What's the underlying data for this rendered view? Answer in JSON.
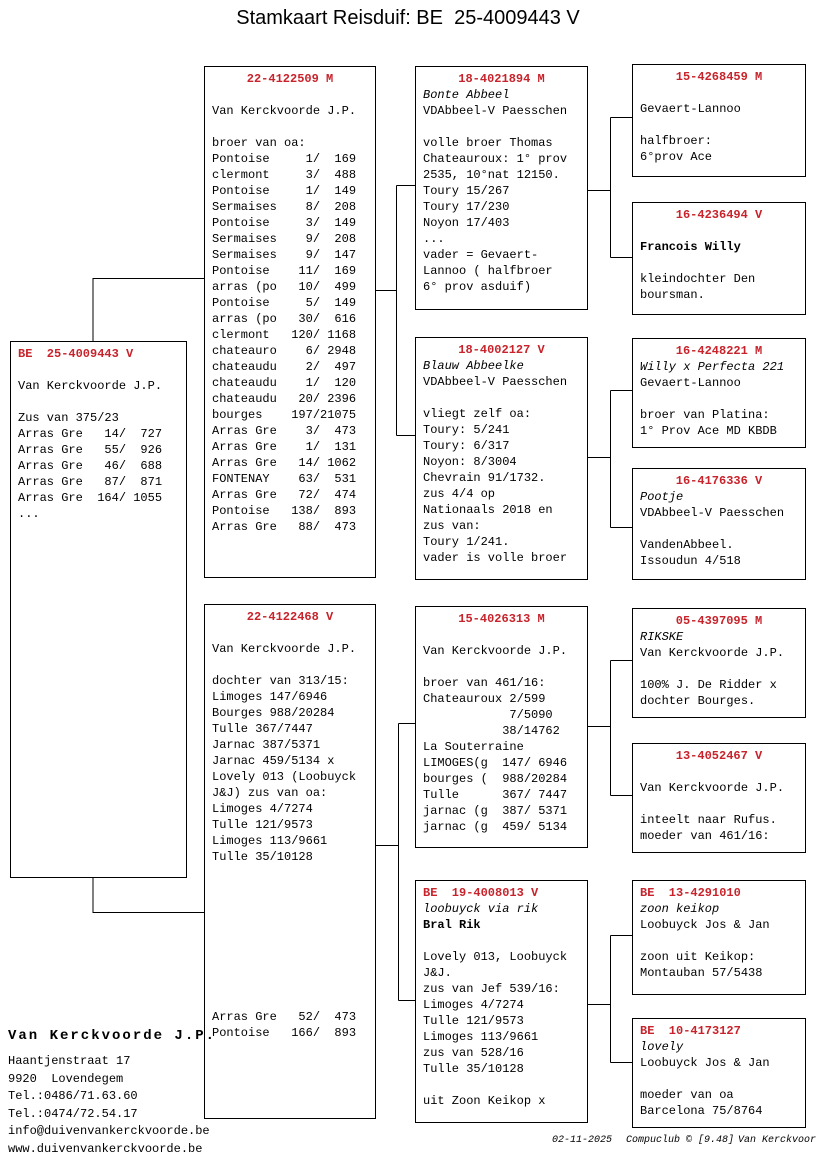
{
  "title": "Stamkaart Reisduif: BE  25-4009443 V",
  "colors": {
    "accent_red": "#c8232b",
    "border": "#000000",
    "background": "#ffffff"
  },
  "boxes": [
    {
      "id": "subject",
      "ring": "BE  25-4009443 V",
      "align": "left",
      "lines": [
        {
          "text": ""
        },
        {
          "text": "Van Kerckvoorde J.P."
        },
        {
          "text": ""
        },
        {
          "text": "Zus van 375/23"
        },
        {
          "text": "Arras Gre   14/  727"
        },
        {
          "text": "Arras Gre   55/  926"
        },
        {
          "text": "Arras Gre   46/  688"
        },
        {
          "text": "Arras Gre   87/  871"
        },
        {
          "text": "Arras Gre  164/ 1055"
        },
        {
          "text": "..."
        }
      ]
    },
    {
      "id": "sire",
      "ring": "22-4122509 M",
      "align": "center",
      "lines": [
        {
          "text": ""
        },
        {
          "text": "Van Kerckvoorde J.P."
        },
        {
          "text": ""
        },
        {
          "text": "broer van oa:"
        },
        {
          "text": "Pontoise     1/  169"
        },
        {
          "text": "clermont     3/  488"
        },
        {
          "text": "Pontoise     1/  149"
        },
        {
          "text": "Sermaises    8/  208"
        },
        {
          "text": "Pontoise     3/  149"
        },
        {
          "text": "Sermaises    9/  208"
        },
        {
          "text": "Sermaises    9/  147"
        },
        {
          "text": "Pontoise    11/  169"
        },
        {
          "text": "arras (po   10/  499"
        },
        {
          "text": "Pontoise     5/  149"
        },
        {
          "text": "arras (po   30/  616"
        },
        {
          "text": "clermont   120/ 1168"
        },
        {
          "text": "chateauro    6/ 2948"
        },
        {
          "text": "chateaudu    2/  497"
        },
        {
          "text": "chateaudu    1/  120"
        },
        {
          "text": "chateaudu   20/ 2396"
        },
        {
          "text": "bourges    197/21075"
        },
        {
          "text": "Arras Gre    3/  473"
        },
        {
          "text": "Arras Gre    1/  131"
        },
        {
          "text": "Arras Gre   14/ 1062"
        },
        {
          "text": "FONTENAY    63/  531"
        },
        {
          "text": "Arras Gre   72/  474"
        },
        {
          "text": "Pontoise   138/  893"
        },
        {
          "text": "Arras Gre   88/  473"
        }
      ]
    },
    {
      "id": "dam",
      "ring": "22-4122468 V",
      "align": "center",
      "lines": [
        {
          "text": ""
        },
        {
          "text": "Van Kerckvoorde J.P."
        },
        {
          "text": ""
        },
        {
          "text": "dochter van 313/15:"
        },
        {
          "text": "Limoges 147/6946"
        },
        {
          "text": "Bourges 988/20284"
        },
        {
          "text": "Tulle 367/7447"
        },
        {
          "text": "Jarnac 387/5371"
        },
        {
          "text": "Jarnac 459/5134 x"
        },
        {
          "text": "Lovely 013 (Loobuyck"
        },
        {
          "text": "J&J) zus van oa:"
        },
        {
          "text": "Limoges 4/7274"
        },
        {
          "text": "Tulle 121/9573"
        },
        {
          "text": "Limoges 113/9661"
        },
        {
          "text": "Tulle 35/10128"
        },
        {
          "text": ""
        },
        {
          "text": ""
        },
        {
          "text": ""
        },
        {
          "text": ""
        },
        {
          "text": ""
        },
        {
          "text": ""
        },
        {
          "text": ""
        },
        {
          "text": ""
        },
        {
          "text": ""
        },
        {
          "text": "Arras Gre   52/  473"
        },
        {
          "text": "Pontoise   166/  893"
        }
      ]
    },
    {
      "id": "ss",
      "ring": "18-4021894 M",
      "align": "center",
      "lines": [
        {
          "text": "Bonte Abbeel",
          "style": "i"
        },
        {
          "text": "VDAbbeel-V Paesschen"
        },
        {
          "text": ""
        },
        {
          "text": "volle broer Thomas"
        },
        {
          "text": "Chateauroux: 1° prov"
        },
        {
          "text": "2535, 10°nat 12150."
        },
        {
          "text": "Toury 15/267"
        },
        {
          "text": "Toury 17/230"
        },
        {
          "text": "Noyon 17/403"
        },
        {
          "text": "..."
        },
        {
          "text": "vader = Gevaert-"
        },
        {
          "text": "Lannoo ( halfbroer"
        },
        {
          "text": "6° prov asduif)"
        }
      ]
    },
    {
      "id": "sd",
      "ring": "18-4002127 V",
      "align": "center",
      "lines": [
        {
          "text": "Blauw Abbeelke",
          "style": "i"
        },
        {
          "text": "VDAbbeel-V Paesschen"
        },
        {
          "text": ""
        },
        {
          "text": "vliegt zelf oa:"
        },
        {
          "text": "Toury: 5/241"
        },
        {
          "text": "Toury: 6/317"
        },
        {
          "text": "Noyon: 8/3004"
        },
        {
          "text": "Chevrain 91/1732."
        },
        {
          "text": "zus 4/4 op"
        },
        {
          "text": "Nationaals 2018 en"
        },
        {
          "text": "zus van:"
        },
        {
          "text": "Toury 1/241."
        },
        {
          "text": "vader is volle broer"
        }
      ]
    },
    {
      "id": "ds",
      "ring": "15-4026313 M",
      "align": "center",
      "lines": [
        {
          "text": ""
        },
        {
          "text": "Van Kerckvoorde J.P."
        },
        {
          "text": ""
        },
        {
          "text": "broer van 461/16:"
        },
        {
          "text": "Chateauroux 2/599"
        },
        {
          "text": "            7/5090"
        },
        {
          "text": "           38/14762"
        },
        {
          "text": "La Souterraine"
        },
        {
          "text": "LIMOGES(g  147/ 6946"
        },
        {
          "text": "bourges (  988/20284"
        },
        {
          "text": "Tulle      367/ 7447"
        },
        {
          "text": "jarnac (g  387/ 5371"
        },
        {
          "text": "jarnac (g  459/ 5134"
        }
      ]
    },
    {
      "id": "dd",
      "ring": "BE  19-4008013 V",
      "align": "left",
      "lines": [
        {
          "text": "loobuyck via rik",
          "style": "i"
        },
        {
          "text": "Bral Rik",
          "style": "b"
        },
        {
          "text": ""
        },
        {
          "text": "Lovely 013, Loobuyck"
        },
        {
          "text": "J&J."
        },
        {
          "text": "zus van Jef 539/16:"
        },
        {
          "text": "Limoges 4/7274"
        },
        {
          "text": "Tulle 121/9573"
        },
        {
          "text": "Limoges 113/9661"
        },
        {
          "text": "zus van 528/16"
        },
        {
          "text": "Tulle 35/10128"
        },
        {
          "text": ""
        },
        {
          "text": "uit Zoon Keikop x"
        }
      ]
    },
    {
      "id": "sss",
      "ring": "15-4268459 M",
      "align": "center",
      "lines": [
        {
          "text": ""
        },
        {
          "text": "Gevaert-Lannoo"
        },
        {
          "text": ""
        },
        {
          "text": "halfbroer:"
        },
        {
          "text": "6°prov Ace"
        }
      ]
    },
    {
      "id": "ssd",
      "ring": "16-4236494 V",
      "align": "center",
      "lines": [
        {
          "text": ""
        },
        {
          "text": "Francois Willy",
          "style": "b"
        },
        {
          "text": ""
        },
        {
          "text": "kleindochter Den"
        },
        {
          "text": "boursman."
        }
      ]
    },
    {
      "id": "sds",
      "ring": "16-4248221 M",
      "align": "center",
      "lines": [
        {
          "text": "Willy x Perfecta 221",
          "style": "i"
        },
        {
          "text": "Gevaert-Lannoo"
        },
        {
          "text": ""
        },
        {
          "text": "broer van Platina:"
        },
        {
          "text": "1° Prov Ace MD KBDB"
        }
      ]
    },
    {
      "id": "sdd",
      "ring": "16-4176336 V",
      "align": "center",
      "lines": [
        {
          "text": "Pootje",
          "style": "i"
        },
        {
          "text": "VDAbbeel-V Paesschen"
        },
        {
          "text": ""
        },
        {
          "text": "VandenAbbeel."
        },
        {
          "text": "Issoudun 4/518"
        }
      ]
    },
    {
      "id": "dss",
      "ring": "05-4397095 M",
      "align": "center",
      "lines": [
        {
          "text": "RIKSKE",
          "style": "i"
        },
        {
          "text": "Van Kerckvoorde J.P."
        },
        {
          "text": ""
        },
        {
          "text": "100% J. De Ridder x"
        },
        {
          "text": "dochter Bourges."
        }
      ]
    },
    {
      "id": "dsd",
      "ring": "13-4052467 V",
      "align": "center",
      "lines": [
        {
          "text": ""
        },
        {
          "text": "Van Kerckvoorde J.P."
        },
        {
          "text": ""
        },
        {
          "text": "inteelt naar Rufus."
        },
        {
          "text": "moeder van 461/16:"
        }
      ]
    },
    {
      "id": "dds",
      "ring": "BE  13-4291010",
      "align": "left",
      "lines": [
        {
          "text": "zoon keikop",
          "style": "i"
        },
        {
          "text": "Loobuyck Jos & Jan"
        },
        {
          "text": ""
        },
        {
          "text": "zoon uit Keikop:"
        },
        {
          "text": "Montauban 57/5438"
        }
      ]
    },
    {
      "id": "ddd",
      "ring": "BE  10-4173127",
      "align": "left",
      "lines": [
        {
          "text": "lovely",
          "style": "i"
        },
        {
          "text": "Loobuyck Jos & Jan"
        },
        {
          "text": ""
        },
        {
          "text": "moeder van oa"
        },
        {
          "text": "Barcelona 75/8764"
        }
      ]
    }
  ],
  "owner": {
    "name": "Van Kerckvoorde J.P.",
    "lines": [
      "Haantjenstraat 17",
      "9920  Lovendegem",
      "Tel.:0486/71.63.60",
      "Tel.:0474/72.54.17",
      "info@duivenvankerckvoorde.be",
      "www.duivenvankerckvoorde.be"
    ]
  },
  "footer": {
    "date": "02-11-2025",
    "program": "Compuclub © [9.48]",
    "owner": "Van Kerckvoorde J.P."
  }
}
